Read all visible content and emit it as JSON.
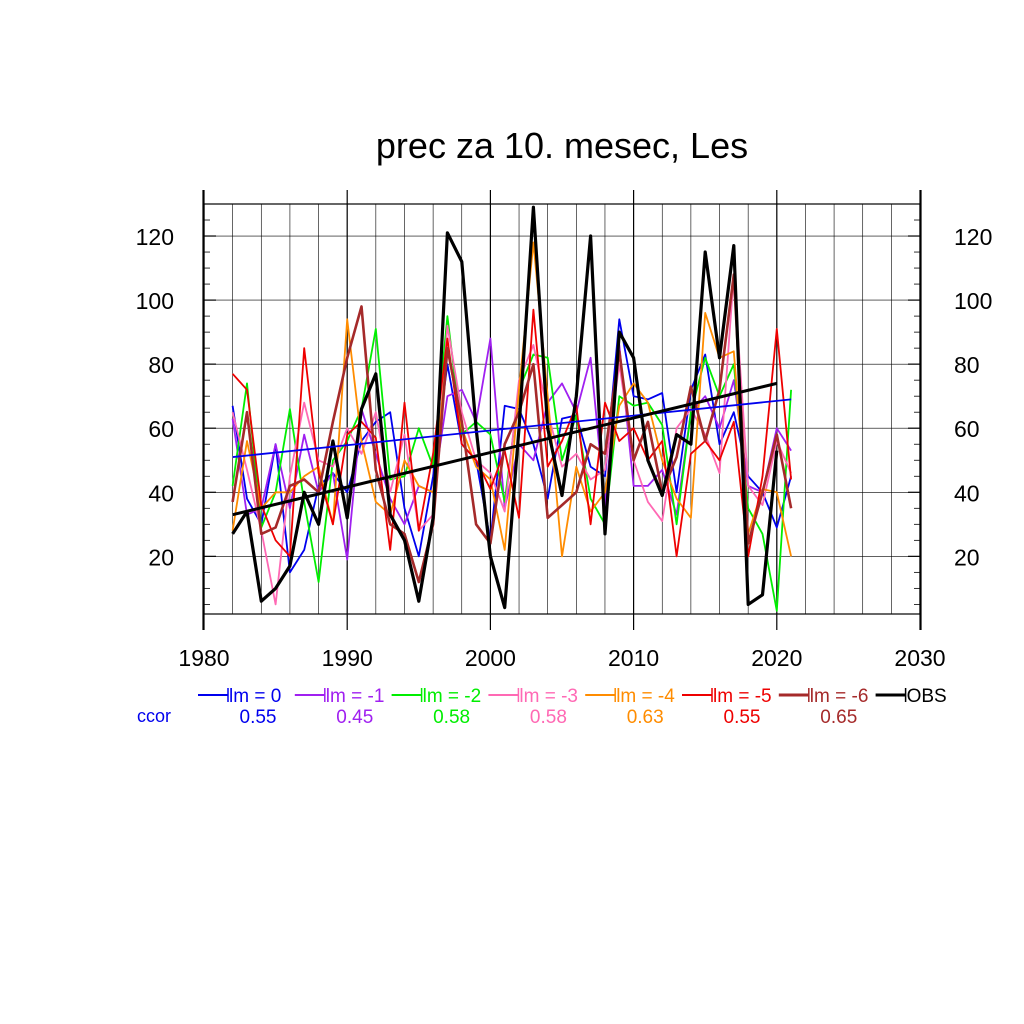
{
  "chart_data": {
    "type": "line",
    "title": "prec za 10. mesec, Les",
    "xlabel": "",
    "ylabel": "",
    "xlim": [
      1980,
      2030
    ],
    "ylim": [
      2,
      130
    ],
    "x_ticks": [
      1980,
      1990,
      2000,
      2010,
      2020,
      2030
    ],
    "y_ticks": [
      20,
      40,
      60,
      80,
      100,
      120
    ],
    "grid": true,
    "legend_position": "bottom",
    "ccor_label": "ccor",
    "x": [
      1982,
      1983,
      1984,
      1985,
      1986,
      1987,
      1988,
      1989,
      1990,
      1991,
      1992,
      1993,
      1994,
      1995,
      1996,
      1997,
      1998,
      1999,
      2000,
      2001,
      2002,
      2003,
      2004,
      2005,
      2006,
      2007,
      2008,
      2009,
      2010,
      2011,
      2012,
      2013,
      2014,
      2015,
      2016,
      2017,
      2018,
      2019,
      2020,
      2021
    ],
    "series": [
      {
        "name": "lm = 0",
        "ccor": "0.55",
        "color": "#0000ee",
        "width": 1.8,
        "values": [
          67,
          38,
          30,
          55,
          15,
          22,
          42,
          46,
          40,
          56,
          62,
          65,
          35,
          20,
          45,
          80,
          55,
          50,
          25,
          67,
          66,
          55,
          38,
          63,
          64,
          48,
          45,
          94,
          70,
          69,
          71,
          40,
          72,
          83,
          55,
          65,
          45,
          40,
          29,
          45
        ],
        "trend": [
          51,
          69
        ]
      },
      {
        "name": "lm = -1",
        "ccor": "0.45",
        "color": "#a020f0",
        "width": 1.8,
        "values": [
          63,
          33,
          35,
          55,
          35,
          58,
          40,
          46,
          19,
          66,
          52,
          38,
          30,
          42,
          40,
          70,
          72,
          62,
          88,
          35,
          55,
          50,
          68,
          74,
          65,
          82,
          36,
          86,
          42,
          42,
          47,
          33,
          65,
          70,
          60,
          75,
          42,
          40,
          60,
          53
        ]
      },
      {
        "name": "lm = -2",
        "ccor": "0.58",
        "color": "#00ee00",
        "width": 1.8,
        "values": [
          42,
          74,
          29,
          40,
          66,
          37,
          12,
          50,
          56,
          66,
          91,
          44,
          45,
          60,
          48,
          95,
          58,
          62,
          58,
          37,
          72,
          83,
          82,
          50,
          64,
          38,
          30,
          70,
          67,
          68,
          61,
          30,
          65,
          82,
          70,
          80,
          35,
          27,
          3,
          72
        ]
      },
      {
        "name": "lm = -3",
        "ccor": "0.58",
        "color": "#ff69b4",
        "width": 1.8,
        "values": [
          65,
          47,
          28,
          5,
          45,
          68,
          50,
          48,
          60,
          52,
          65,
          40,
          58,
          28,
          33,
          92,
          65,
          50,
          46,
          34,
          75,
          86,
          65,
          48,
          52,
          44,
          47,
          80,
          50,
          37,
          31,
          60,
          66,
          58,
          46,
          108,
          42,
          36,
          56,
          46
        ]
      },
      {
        "name": "lm = -4",
        "ccor": "0.63",
        "color": "#ff8c00",
        "width": 1.8,
        "values": [
          28,
          56,
          35,
          40,
          40,
          45,
          48,
          30,
          94,
          56,
          37,
          33,
          50,
          42,
          40,
          85,
          60,
          48,
          44,
          22,
          72,
          118,
          70,
          20,
          48,
          34,
          40,
          67,
          74,
          68,
          50,
          38,
          32,
          96,
          82,
          84,
          27,
          41,
          40,
          20
        ]
      },
      {
        "name": "lm = -5",
        "ccor": "0.55",
        "color": "#ee0000",
        "width": 1.8,
        "values": [
          77,
          72,
          36,
          25,
          20,
          85,
          46,
          30,
          58,
          62,
          57,
          22,
          68,
          28,
          52,
          88,
          55,
          50,
          41,
          53,
          32,
          97,
          48,
          56,
          67,
          30,
          68,
          56,
          60,
          50,
          56,
          20,
          52,
          56,
          50,
          62,
          20,
          45,
          91,
          44
        ]
      },
      {
        "name": "lm = -6",
        "ccor": "0.65",
        "color": "#a52a2a",
        "width": 2.6,
        "values": [
          37,
          65,
          27,
          29,
          42,
          44,
          40,
          62,
          82,
          98,
          47,
          30,
          27,
          12,
          30,
          85,
          62,
          30,
          24,
          55,
          65,
          80,
          32,
          36,
          40,
          55,
          52,
          84,
          50,
          62,
          40,
          51,
          73,
          56,
          72,
          108,
          24,
          40,
          58,
          35
        ]
      },
      {
        "name": "OBS",
        "ccor": "",
        "color": "#000000",
        "width": 3.2,
        "values": [
          27,
          34,
          6,
          10,
          17,
          40,
          30,
          56,
          32,
          66,
          77,
          33,
          25,
          6,
          32,
          121,
          112,
          60,
          20,
          4,
          60,
          129,
          60,
          39,
          70,
          120,
          27,
          90,
          82,
          50,
          39,
          58,
          55,
          115,
          82,
          117,
          5,
          8,
          53,
          null
        ],
        "trend": [
          33,
          74
        ]
      }
    ]
  }
}
